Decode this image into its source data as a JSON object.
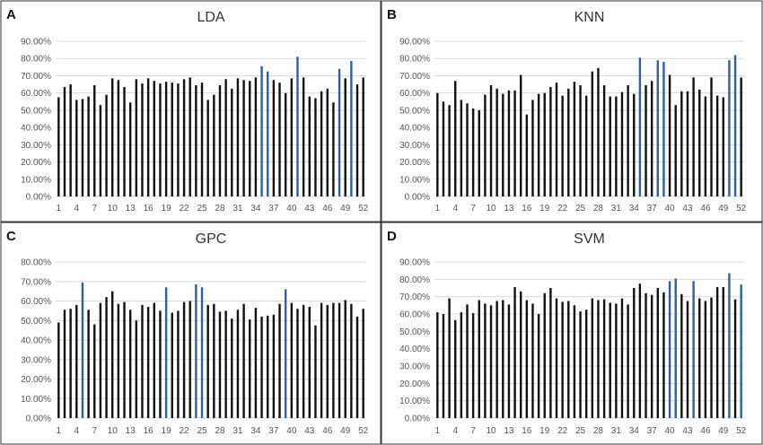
{
  "chart_data": [
    {
      "type": "bar",
      "panel": "A",
      "title": "LDA",
      "ylim": [
        0,
        90
      ],
      "yticks": [
        "0.00%",
        "10.00%",
        "20.00%",
        "30.00%",
        "40.00%",
        "50.00%",
        "60.00%",
        "70.00%",
        "80.00%",
        "90.00%"
      ],
      "xtick_labels": [
        "1",
        "4",
        "7",
        "10",
        "13",
        "16",
        "19",
        "22",
        "25",
        "28",
        "31",
        "34",
        "37",
        "40",
        "43",
        "46",
        "49",
        "52"
      ],
      "categories": [
        1,
        2,
        3,
        4,
        5,
        6,
        7,
        8,
        9,
        10,
        11,
        12,
        13,
        14,
        15,
        16,
        17,
        18,
        19,
        20,
        21,
        22,
        23,
        24,
        25,
        26,
        27,
        28,
        29,
        30,
        31,
        32,
        33,
        34,
        35,
        36,
        37,
        38,
        39,
        40,
        41,
        42,
        43,
        44,
        45,
        46,
        47,
        48,
        49,
        50,
        51,
        52
      ],
      "values": [
        57.5,
        63.5,
        65,
        56,
        56.5,
        58,
        64.5,
        53,
        59,
        68.5,
        67.5,
        63.5,
        54.5,
        68,
        65.5,
        68.5,
        67,
        65.5,
        66.5,
        66,
        65.5,
        68,
        69,
        64.5,
        66,
        56,
        59,
        64.5,
        68,
        62.5,
        68.5,
        67.5,
        67,
        69,
        75.5,
        72.5,
        67.5,
        66,
        60,
        68.5,
        81,
        69,
        58,
        57,
        61,
        62.5,
        54.5,
        74,
        68.5,
        78.5,
        65,
        69
      ],
      "highlight_color": "#2e5fa6",
      "bar_color": "#111111",
      "highlighted": [
        35,
        36,
        41,
        48,
        50
      ]
    },
    {
      "type": "bar",
      "panel": "B",
      "title": "KNN",
      "ylim": [
        0,
        90
      ],
      "yticks": [
        "0.00%",
        "10.00%",
        "20.00%",
        "30.00%",
        "40.00%",
        "50.00%",
        "60.00%",
        "70.00%",
        "80.00%",
        "90.00%"
      ],
      "xtick_labels": [
        "1",
        "4",
        "7",
        "10",
        "13",
        "16",
        "19",
        "22",
        "25",
        "28",
        "31",
        "34",
        "37",
        "40",
        "43",
        "46",
        "49",
        "52"
      ],
      "categories": [
        1,
        2,
        3,
        4,
        5,
        6,
        7,
        8,
        9,
        10,
        11,
        12,
        13,
        14,
        15,
        16,
        17,
        18,
        19,
        20,
        21,
        22,
        23,
        24,
        25,
        26,
        27,
        28,
        29,
        30,
        31,
        32,
        33,
        34,
        35,
        36,
        37,
        38,
        39,
        40,
        41,
        42,
        43,
        44,
        45,
        46,
        47,
        48,
        49,
        50,
        51,
        52
      ],
      "values": [
        60,
        55,
        53,
        67,
        56,
        54,
        51,
        50,
        59,
        64.5,
        62.5,
        59.5,
        61.5,
        61.5,
        70.5,
        47.5,
        56,
        59.5,
        60,
        63.5,
        66,
        58.5,
        62.5,
        66.5,
        64.5,
        58.5,
        72.5,
        74.5,
        64.5,
        58,
        58,
        60.5,
        64.5,
        59.5,
        80.5,
        64.5,
        67,
        79,
        78,
        70.5,
        53,
        61,
        61,
        69,
        62,
        58,
        69,
        58.5,
        57.5,
        79,
        82,
        69
      ],
      "highlight_color": "#2e5fa6",
      "bar_color": "#111111",
      "highlighted": [
        35,
        38,
        39,
        50,
        51
      ]
    },
    {
      "type": "bar",
      "panel": "C",
      "title": "GPC",
      "ylim": [
        0,
        80
      ],
      "yticks": [
        "0.00%",
        "10.00%",
        "20.00%",
        "30.00%",
        "40.00%",
        "50.00%",
        "60.00%",
        "70.00%",
        "80.00%"
      ],
      "xtick_labels": [
        "1",
        "4",
        "7",
        "10",
        "13",
        "16",
        "19",
        "22",
        "25",
        "28",
        "31",
        "34",
        "37",
        "40",
        "43",
        "46",
        "49",
        "52"
      ],
      "categories": [
        1,
        2,
        3,
        4,
        5,
        6,
        7,
        8,
        9,
        10,
        11,
        12,
        13,
        14,
        15,
        16,
        17,
        18,
        19,
        20,
        21,
        22,
        23,
        24,
        25,
        26,
        27,
        28,
        29,
        30,
        31,
        32,
        33,
        34,
        35,
        36,
        37,
        38,
        39,
        40,
        41,
        42,
        43,
        44,
        45,
        46,
        47,
        48,
        49,
        50,
        51,
        52
      ],
      "values": [
        49,
        55.5,
        56,
        58,
        69.5,
        55.5,
        48,
        59,
        62,
        65,
        58.5,
        59.5,
        55.5,
        50,
        58,
        57,
        59,
        55,
        67,
        54,
        55,
        59.5,
        60,
        68.5,
        67,
        58,
        58.5,
        54.5,
        55,
        51,
        55.5,
        58.5,
        50.5,
        56.5,
        52,
        52.5,
        53,
        58.5,
        66,
        59,
        56,
        58,
        57,
        47.5,
        59,
        58,
        59,
        59,
        60.5,
        58.5,
        52,
        56
      ],
      "highlight_color": "#2e5fa6",
      "bar_color": "#111111",
      "highlighted": [
        5,
        19,
        24,
        25,
        39
      ]
    },
    {
      "type": "bar",
      "panel": "D",
      "title": "SVM",
      "ylim": [
        0,
        90
      ],
      "yticks": [
        "0.00%",
        "10.00%",
        "20.00%",
        "30.00%",
        "40.00%",
        "50.00%",
        "60.00%",
        "70.00%",
        "80.00%",
        "90.00%"
      ],
      "xtick_labels": [
        "1",
        "4",
        "7",
        "10",
        "13",
        "16",
        "19",
        "22",
        "25",
        "28",
        "31",
        "34",
        "37",
        "40",
        "43",
        "46",
        "49",
        "52"
      ],
      "categories": [
        1,
        2,
        3,
        4,
        5,
        6,
        7,
        8,
        9,
        10,
        11,
        12,
        13,
        14,
        15,
        16,
        17,
        18,
        19,
        20,
        21,
        22,
        23,
        24,
        25,
        26,
        27,
        28,
        29,
        30,
        31,
        32,
        33,
        34,
        35,
        36,
        37,
        38,
        39,
        40,
        41,
        42,
        43,
        44,
        45,
        46,
        47,
        48,
        49,
        50,
        51,
        52
      ],
      "values": [
        61,
        60,
        69,
        56.5,
        61,
        65.5,
        60.5,
        68,
        66,
        65,
        67.5,
        68,
        65.5,
        75.5,
        73,
        68,
        66,
        60,
        72,
        75,
        69,
        67,
        67.5,
        65,
        61.5,
        62.5,
        69,
        68,
        68.5,
        66.5,
        66,
        69,
        65.5,
        75,
        77.5,
        72,
        71,
        75,
        72.5,
        79,
        80.5,
        71.5,
        67.5,
        79,
        69,
        67.5,
        69.5,
        75.5,
        75.5,
        83.5,
        68.5,
        77
      ],
      "highlight_color": "#2e5fa6",
      "bar_color": "#111111",
      "highlighted": [
        40,
        41,
        44,
        50,
        52
      ]
    }
  ]
}
